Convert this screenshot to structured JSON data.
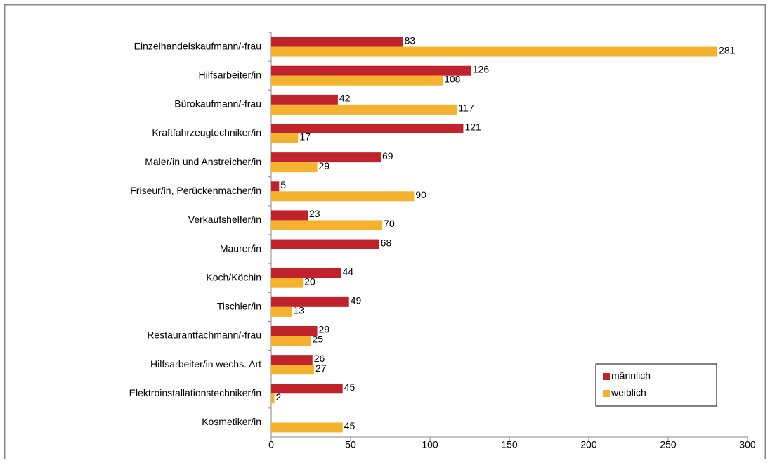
{
  "chart_data": {
    "type": "bar",
    "orientation": "horizontal",
    "categories": [
      "Einzelhandelskaufmann/-frau",
      "Hilfsarbeiter/in",
      "Bürokaufmann/-frau",
      "Kraftfahrzeugtechniker/in",
      "Maler/in und Anstreicher/in",
      "Friseur/in, Perückenmacher/in",
      "Verkaufshelfer/in",
      "Maurer/in",
      "Koch/Köchin",
      "Tischler/in",
      "Restaurantfachmann/-frau",
      "Hilfsarbeiter/in wechs. Art",
      "Elektroinstallationstechniker/in",
      "Kosmetiker/in"
    ],
    "series": [
      {
        "name": "männlich",
        "color": "#c0232c",
        "values": [
          83,
          126,
          42,
          121,
          69,
          5,
          23,
          68,
          44,
          49,
          29,
          26,
          45,
          null
        ]
      },
      {
        "name": "weiblich",
        "color": "#f5b22f",
        "values": [
          281,
          108,
          117,
          17,
          29,
          90,
          70,
          null,
          20,
          13,
          25,
          27,
          2,
          45
        ]
      }
    ],
    "xlim": [
      0,
      300
    ],
    "xticks": [
      0,
      50,
      100,
      150,
      200,
      250,
      300
    ],
    "grid": false,
    "legend": "lower right"
  }
}
